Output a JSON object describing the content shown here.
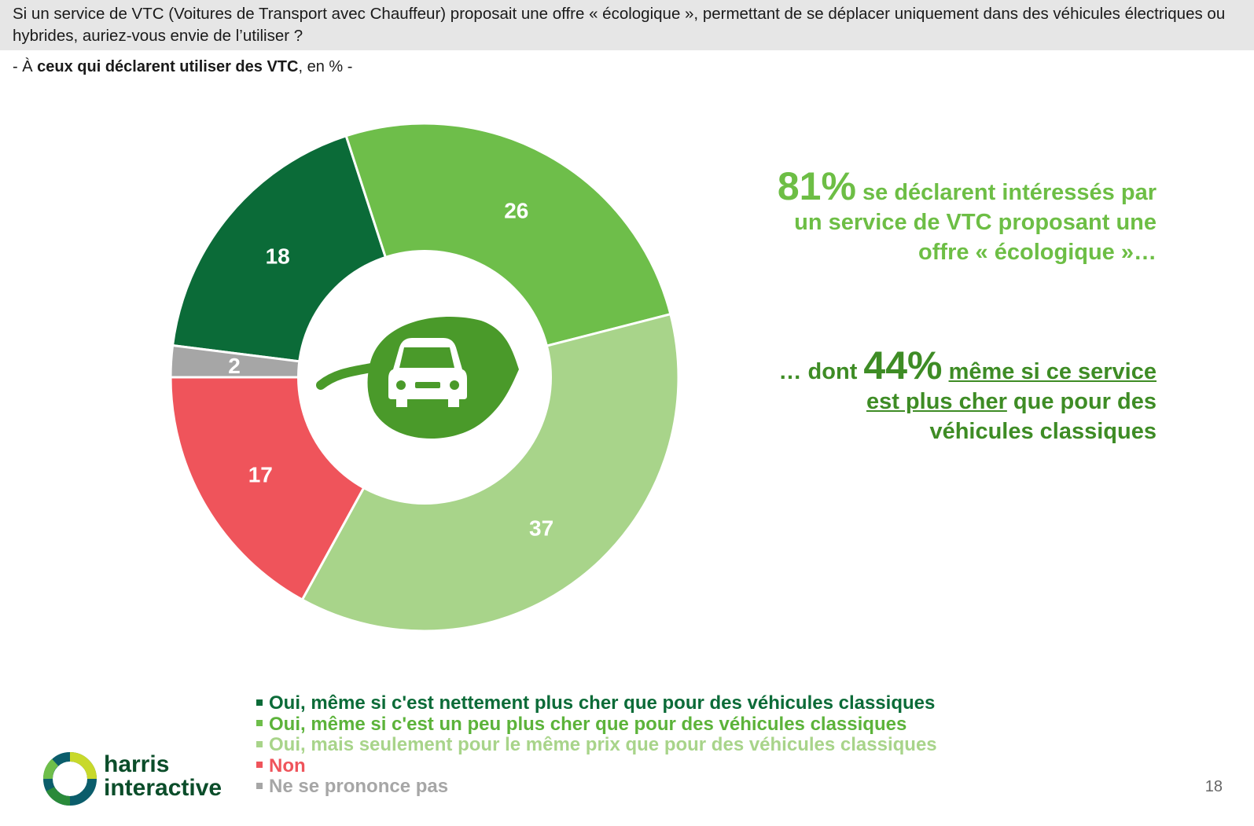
{
  "header": {
    "question": "Si un service de VTC (Voitures de Transport avec Chauffeur) proposait une offre « écologique », permettant de se déplacer uniquement dans des véhicules électriques ou hybrides, auriez-vous envie de l’utiliser ?",
    "subtitle_prefix": "- À ",
    "subtitle_bold": "ceux qui déclarent utiliser des VTC",
    "subtitle_suffix": ", en % -"
  },
  "chart_data": {
    "type": "pie",
    "donut": true,
    "center_icon": "leaf-car-icon",
    "categories": [
      "Oui, même si c'est nettement plus cher que pour des véhicules classiques",
      "Oui, même si c'est un peu plus cher que pour des véhicules classiques",
      "Oui, mais seulement pour le même prix que pour des véhicules classiques",
      "Non",
      "Ne se prononce pas"
    ],
    "values": [
      18,
      26,
      37,
      17,
      2
    ],
    "colors": [
      "#0b6b38",
      "#6ebe4a",
      "#a8d48a",
      "#ef545b",
      "#a6a6a6"
    ],
    "legend_position": "bottom"
  },
  "callouts": {
    "first_big": "81%",
    "first_text_line1": " se déclarent intéressés par",
    "first_text_line2": "un service de VTC proposant une",
    "first_text_line3": "offre « écologique »…",
    "second_prefix": "… dont ",
    "second_big": "44%",
    "second_underlined_1": "même si ce service",
    "second_underlined_2": "est plus cher",
    "second_text_2": " que pour des",
    "second_text_3": "véhicules classiques"
  },
  "logo": {
    "line1": "harris",
    "line2": "interactive"
  },
  "page_number": "18"
}
